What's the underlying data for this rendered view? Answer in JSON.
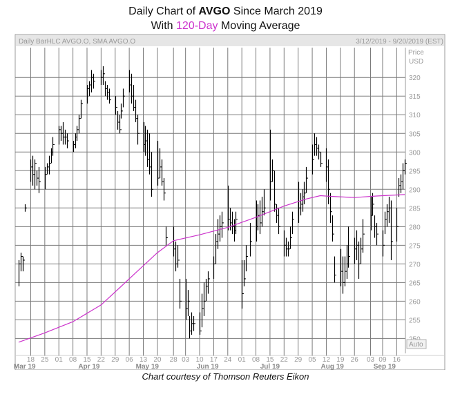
{
  "title": {
    "line1_prefix": "Daily Chart of ",
    "ticker": "AVGO",
    "line1_suffix": " Since March 2019",
    "line2_prefix": "With ",
    "ma_label": "120-Day",
    "line2_suffix": " Moving Average"
  },
  "caption": "Chart courtesy of Thomson Reuters Eikon",
  "colors": {
    "ma_line": "#cc33cc",
    "bars": "#000000",
    "grid": "#7a7a7a",
    "header_bg": "#e6e6e6",
    "panel_text": "#999999"
  },
  "chart_data": {
    "type": "bar",
    "subtype": "OHLC",
    "series": [
      {
        "name": "Daily BarHLC AVGO.O",
        "kind": "hlc"
      },
      {
        "name": "SMA AVGO.O",
        "kind": "line"
      }
    ],
    "header_left": "Daily BarHLC AVGO.O, SMA AVGO.O",
    "header_right": "3/12/2019 - 9/20/2019 (EST)",
    "ylabel": "Price",
    "yunit": "USD",
    "ylim": [
      246,
      328
    ],
    "yticks": [
      250,
      255,
      260,
      265,
      270,
      275,
      280,
      285,
      290,
      295,
      300,
      305,
      310,
      315,
      320
    ],
    "auto_label": "Auto",
    "xlim": [
      "2019-03-12",
      "2019-09-20"
    ],
    "xticks": [
      "18",
      "25",
      "01",
      "08",
      "15",
      "22",
      "29",
      "06",
      "13",
      "20",
      "28",
      "03",
      "10",
      "17",
      "24",
      "01",
      "08",
      "15",
      "22",
      "29",
      "05",
      "12",
      "19",
      "26",
      "03",
      "09",
      "16"
    ],
    "xtick_dates": [
      "2019-03-18",
      "2019-03-25",
      "2019-04-01",
      "2019-04-08",
      "2019-04-15",
      "2019-04-22",
      "2019-04-29",
      "2019-05-06",
      "2019-05-13",
      "2019-05-20",
      "2019-05-28",
      "2019-06-03",
      "2019-06-10",
      "2019-06-17",
      "2019-06-24",
      "2019-07-01",
      "2019-07-08",
      "2019-07-15",
      "2019-07-22",
      "2019-07-29",
      "2019-08-05",
      "2019-08-12",
      "2019-08-19",
      "2019-08-26",
      "2019-09-03",
      "2019-09-09",
      "2019-09-16"
    ],
    "months": [
      {
        "label": "Mar 19",
        "date": "2019-03-15"
      },
      {
        "label": "Apr 19",
        "date": "2019-04-16"
      },
      {
        "label": "May 19",
        "date": "2019-05-15"
      },
      {
        "label": "Jun 19",
        "date": "2019-06-14"
      },
      {
        "label": "Jul 19",
        "date": "2019-07-15"
      },
      {
        "label": "Aug 19",
        "date": "2019-08-15"
      },
      {
        "label": "Sep 19",
        "date": "2019-09-10"
      }
    ],
    "hlc": [
      [
        "2019-03-12",
        271,
        264,
        270
      ],
      [
        "2019-03-13",
        273,
        268,
        272
      ],
      [
        "2019-03-14",
        272,
        268,
        271
      ],
      [
        "2019-03-15",
        286,
        284,
        285
      ],
      [
        "2019-03-18",
        298,
        292,
        296
      ],
      [
        "2019-03-19",
        299,
        291,
        294
      ],
      [
        "2019-03-20",
        298,
        290,
        297
      ],
      [
        "2019-03-21",
        295,
        291,
        293
      ],
      [
        "2019-03-22",
        296,
        289,
        292
      ],
      [
        "2019-03-25",
        296,
        290,
        294
      ],
      [
        "2019-03-26",
        297,
        294,
        296
      ],
      [
        "2019-03-27",
        299,
        294,
        297
      ],
      [
        "2019-03-28",
        301,
        297,
        300
      ],
      [
        "2019-03-29",
        304,
        299,
        302
      ],
      [
        "2019-04-01",
        307,
        302,
        306
      ],
      [
        "2019-04-02",
        307,
        303,
        305
      ],
      [
        "2019-04-03",
        308,
        302,
        304
      ],
      [
        "2019-04-04",
        306,
        302,
        304
      ],
      [
        "2019-04-05",
        305,
        301,
        303
      ],
      [
        "2019-04-08",
        303,
        300,
        302
      ],
      [
        "2019-04-09",
        305,
        301,
        304
      ],
      [
        "2019-04-10",
        307,
        303,
        306
      ],
      [
        "2019-04-11",
        310,
        305,
        309
      ],
      [
        "2019-04-12",
        314,
        309,
        313
      ],
      [
        "2019-04-15",
        318,
        313,
        317
      ],
      [
        "2019-04-16",
        319,
        315,
        318
      ],
      [
        "2019-04-17",
        322,
        316,
        320
      ],
      [
        "2019-04-18",
        321,
        317,
        319
      ],
      [
        "2019-04-22",
        322,
        318,
        320
      ],
      [
        "2019-04-23",
        323,
        318,
        321
      ],
      [
        "2019-04-24",
        319,
        315,
        317
      ],
      [
        "2019-04-25",
        318,
        314,
        316
      ],
      [
        "2019-04-26",
        317,
        313,
        314
      ],
      [
        "2019-04-29",
        315,
        310,
        312
      ],
      [
        "2019-04-30",
        311,
        306,
        308
      ],
      [
        "2019-05-01",
        310,
        305,
        306
      ],
      [
        "2019-05-02",
        313,
        309,
        311
      ],
      [
        "2019-05-03",
        317,
        312,
        315
      ],
      [
        "2019-05-06",
        322,
        316,
        318
      ],
      [
        "2019-05-07",
        321,
        313,
        315
      ],
      [
        "2019-05-08",
        318,
        311,
        312
      ],
      [
        "2019-05-09",
        314,
        308,
        309
      ],
      [
        "2019-05-10",
        310,
        302,
        305
      ],
      [
        "2019-05-13",
        308,
        300,
        302
      ],
      [
        "2019-05-14",
        307,
        299,
        303
      ],
      [
        "2019-05-15",
        306,
        296,
        298
      ],
      [
        "2019-05-16",
        305,
        294,
        296
      ],
      [
        "2019-05-17",
        300,
        288,
        290
      ],
      [
        "2019-05-20",
        303,
        291,
        293
      ],
      [
        "2019-05-21",
        301,
        293,
        296
      ],
      [
        "2019-05-22",
        298,
        291,
        292
      ],
      [
        "2019-05-23",
        293,
        287,
        289
      ],
      [
        "2019-05-24",
        280,
        275,
        277
      ],
      [
        "2019-05-28",
        280,
        272,
        274
      ],
      [
        "2019-05-29",
        276,
        268,
        270
      ],
      [
        "2019-05-30",
        275,
        269,
        271
      ],
      [
        "2019-05-31",
        266,
        258,
        260
      ],
      [
        "2019-06-03",
        266,
        255,
        258
      ],
      [
        "2019-06-04",
        263,
        256,
        260
      ],
      [
        "2019-06-05",
        256,
        250,
        252
      ],
      [
        "2019-06-06",
        257,
        251,
        254
      ],
      [
        "2019-06-07",
        256,
        252,
        254
      ],
      [
        "2019-06-10",
        257,
        251,
        252
      ],
      [
        "2019-06-11",
        262,
        253,
        258
      ],
      [
        "2019-06-12",
        265,
        256,
        260
      ],
      [
        "2019-06-13",
        266,
        260,
        264
      ],
      [
        "2019-06-14",
        268,
        262,
        266
      ],
      [
        "2019-06-17",
        272,
        266,
        270
      ],
      [
        "2019-06-18",
        278,
        270,
        276
      ],
      [
        "2019-06-19",
        282,
        274,
        278
      ],
      [
        "2019-06-20",
        283,
        276,
        280
      ],
      [
        "2019-06-21",
        284,
        277,
        281
      ],
      [
        "2019-06-24",
        291,
        279,
        282
      ],
      [
        "2019-06-25",
        285,
        279,
        281
      ],
      [
        "2019-06-26",
        284,
        278,
        280
      ],
      [
        "2019-06-27",
        282,
        276,
        279
      ],
      [
        "2019-06-28",
        284,
        278,
        282
      ],
      [
        "2019-07-01",
        271,
        258,
        262
      ],
      [
        "2019-07-02",
        271,
        264,
        266
      ],
      [
        "2019-07-03",
        275,
        268,
        272
      ],
      [
        "2019-07-05",
        281,
        272,
        276
      ],
      [
        "2019-07-08",
        287,
        276,
        280
      ],
      [
        "2019-07-09",
        286,
        279,
        283
      ],
      [
        "2019-07-10",
        287,
        278,
        281
      ],
      [
        "2019-07-11",
        288,
        280,
        284
      ],
      [
        "2019-07-12",
        290,
        283,
        285
      ],
      [
        "2019-07-15",
        306,
        287,
        292
      ],
      [
        "2019-07-16",
        298,
        292,
        295
      ],
      [
        "2019-07-17",
        295,
        284,
        286
      ],
      [
        "2019-07-18",
        286,
        281,
        283
      ],
      [
        "2019-07-19",
        285,
        278,
        280
      ],
      [
        "2019-07-22",
        279,
        272,
        275
      ],
      [
        "2019-07-23",
        277,
        272,
        274
      ],
      [
        "2019-07-24",
        276,
        272,
        274
      ],
      [
        "2019-07-25",
        280,
        274,
        277
      ],
      [
        "2019-07-26",
        284,
        278,
        282
      ],
      [
        "2019-07-29",
        292,
        281,
        285
      ],
      [
        "2019-07-30",
        289,
        283,
        286
      ],
      [
        "2019-07-31",
        290,
        284,
        288
      ],
      [
        "2019-08-01",
        292,
        286,
        289
      ],
      [
        "2019-08-02",
        296,
        289,
        293
      ],
      [
        "2019-08-05",
        302,
        294,
        298
      ],
      [
        "2019-08-06",
        305,
        299,
        302
      ],
      [
        "2019-08-07",
        304,
        299,
        301
      ],
      [
        "2019-08-08",
        302,
        298,
        300
      ],
      [
        "2019-08-09",
        300,
        296,
        297
      ],
      [
        "2019-08-12",
        301,
        292,
        296
      ],
      [
        "2019-08-13",
        298,
        286,
        290
      ],
      [
        "2019-08-14",
        289,
        281,
        284
      ],
      [
        "2019-08-15",
        283,
        276,
        278
      ],
      [
        "2019-08-16",
        272,
        265,
        267
      ],
      [
        "2019-08-19",
        274,
        264,
        268
      ],
      [
        "2019-08-20",
        272,
        262,
        265
      ],
      [
        "2019-08-21",
        272,
        264,
        268
      ],
      [
        "2019-08-22",
        275,
        266,
        270
      ],
      [
        "2019-08-23",
        280,
        269,
        272
      ],
      [
        "2019-08-26",
        277,
        270,
        274
      ],
      [
        "2019-08-27",
        279,
        271,
        275
      ],
      [
        "2019-08-28",
        276,
        266,
        270
      ],
      [
        "2019-08-29",
        277,
        270,
        274
      ],
      [
        "2019-08-30",
        282,
        273,
        278
      ],
      [
        "2019-09-03",
        288,
        279,
        283
      ],
      [
        "2019-09-04",
        289,
        283,
        286
      ],
      [
        "2019-09-05",
        283,
        277,
        280
      ],
      [
        "2019-09-06",
        281,
        275,
        278
      ],
      [
        "2019-09-09",
        279,
        272,
        275
      ],
      [
        "2019-09-10",
        284,
        278,
        282
      ],
      [
        "2019-09-11",
        286,
        280,
        284
      ],
      [
        "2019-09-12",
        288,
        281,
        285
      ],
      [
        "2019-09-13",
        287,
        271,
        276
      ],
      [
        "2019-09-16",
        285,
        276,
        280
      ],
      [
        "2019-09-17",
        293,
        288,
        291
      ],
      [
        "2019-09-18",
        294,
        289,
        292
      ],
      [
        "2019-09-19",
        297,
        290,
        295
      ],
      [
        "2019-09-20",
        298,
        294,
        297
      ]
    ],
    "sma_120": [
      [
        "2019-03-12",
        249.0
      ],
      [
        "2019-03-25",
        251.5
      ],
      [
        "2019-04-08",
        254.5
      ],
      [
        "2019-04-22",
        259.0
      ],
      [
        "2019-05-01",
        263.5
      ],
      [
        "2019-05-10",
        268.0
      ],
      [
        "2019-05-20",
        273.0
      ],
      [
        "2019-05-28",
        276.2
      ],
      [
        "2019-06-10",
        277.8
      ],
      [
        "2019-06-24",
        279.8
      ],
      [
        "2019-07-08",
        282.5
      ],
      [
        "2019-07-22",
        285.5
      ],
      [
        "2019-08-02",
        287.4
      ],
      [
        "2019-08-09",
        288.3
      ],
      [
        "2019-08-15",
        288.1
      ],
      [
        "2019-08-26",
        287.8
      ],
      [
        "2019-09-06",
        288.2
      ],
      [
        "2019-09-20",
        288.6
      ]
    ]
  }
}
